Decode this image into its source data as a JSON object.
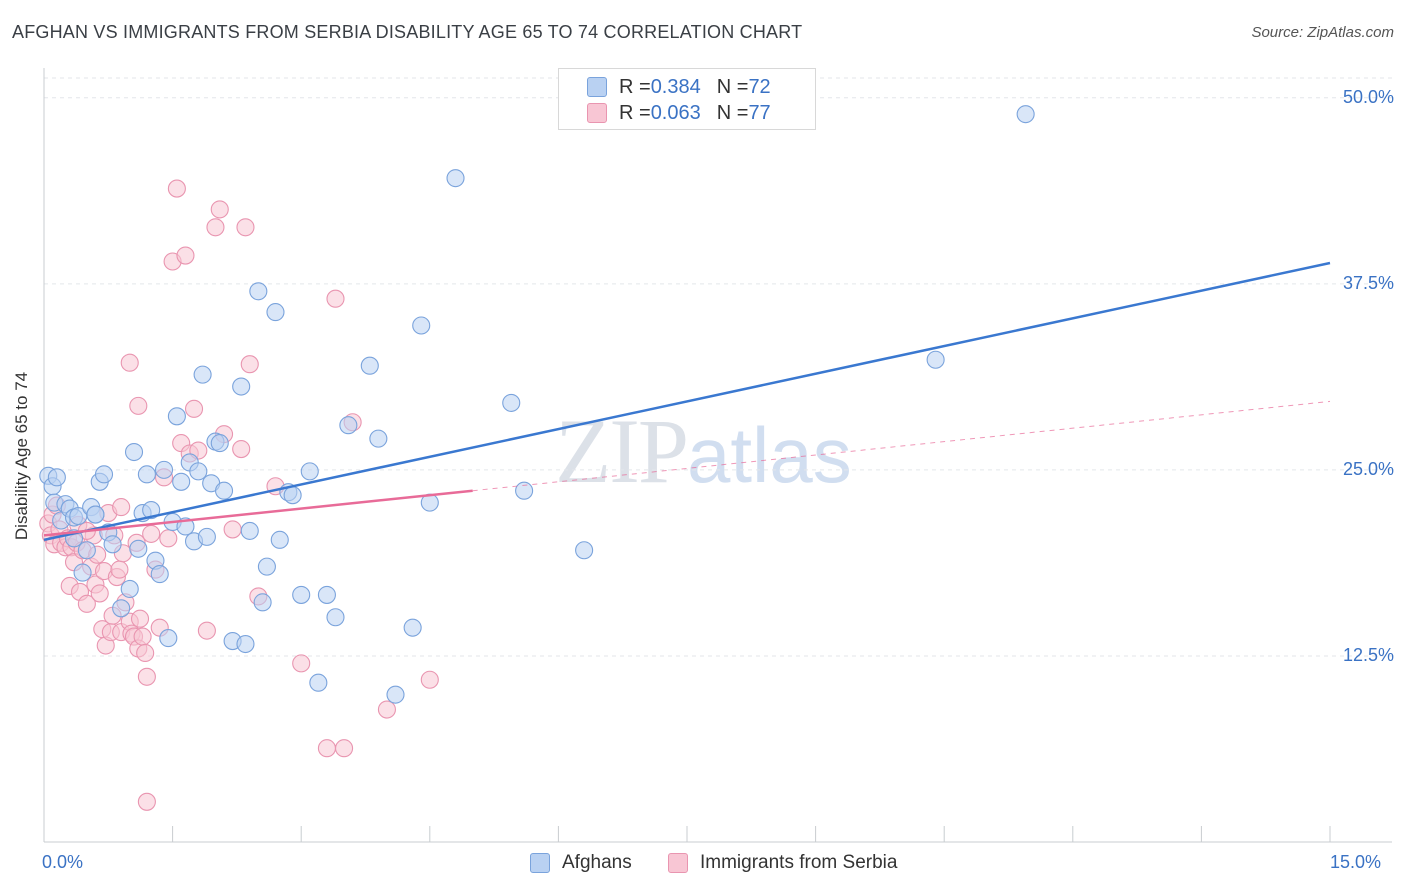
{
  "title": "AFGHAN VS IMMIGRANTS FROM SERBIA DISABILITY AGE 65 TO 74 CORRELATION CHART",
  "source_label": "Source: ZipAtlas.com",
  "watermark": {
    "zip": "ZIP",
    "atlas": "atlas"
  },
  "legend": {
    "rows": [
      {
        "r_label": "R = ",
        "r_value": "0.384",
        "n_label": "N = ",
        "n_value": "72",
        "fill": "#b9d1f2",
        "stroke": "#7aa3dc"
      },
      {
        "r_label": "R = ",
        "r_value": "0.063",
        "n_label": "N = ",
        "n_value": "77",
        "fill": "#f8c6d4",
        "stroke": "#e995b0"
      }
    ]
  },
  "bottom_legend": [
    {
      "label": "Afghans",
      "fill": "#b9d1f2",
      "stroke": "#7aa3dc"
    },
    {
      "label": "Immigrants from Serbia",
      "fill": "#f8c6d4",
      "stroke": "#e995b0"
    }
  ],
  "chart_data": {
    "type": "scatter",
    "title": "AFGHAN VS IMMIGRANTS FROM SERBIA DISABILITY AGE 65 TO 74 CORRELATION CHART",
    "xlabel": "",
    "ylabel": "Disability Age 65 to 74",
    "xlim": [
      0,
      15
    ],
    "ylim": [
      0,
      52
    ],
    "x_tick_labels": [
      "0.0%",
      "15.0%"
    ],
    "y_ticks": [
      12.5,
      25.0,
      37.5,
      50.0
    ],
    "y_tick_labels": [
      "12.5%",
      "25.0%",
      "37.5%",
      "50.0%"
    ],
    "colors": {
      "afghans": "#3a78d0",
      "serbia": "#e86b98"
    },
    "series": [
      {
        "name": "Afghans",
        "fill": "#b9d1f2",
        "stroke": "#7aa3dc",
        "trend_color": "#3a78d0",
        "trend": {
          "x0": 0.0,
          "y0": 20.3,
          "x1": 15.0,
          "y1": 38.9
        },
        "points": [
          [
            0.05,
            24.6
          ],
          [
            0.1,
            23.9
          ],
          [
            0.12,
            22.8
          ],
          [
            0.15,
            24.5
          ],
          [
            0.2,
            21.6
          ],
          [
            0.25,
            22.7
          ],
          [
            0.3,
            22.4
          ],
          [
            0.35,
            21.8
          ],
          [
            0.4,
            21.9
          ],
          [
            0.45,
            18.1
          ],
          [
            0.5,
            19.6
          ],
          [
            0.55,
            22.5
          ],
          [
            0.6,
            22.0
          ],
          [
            0.65,
            24.2
          ],
          [
            0.7,
            24.7
          ],
          [
            0.75,
            20.8
          ],
          [
            0.8,
            20.0
          ],
          [
            0.9,
            15.7
          ],
          [
            1.0,
            17.0
          ],
          [
            1.05,
            26.2
          ],
          [
            1.1,
            19.7
          ],
          [
            1.15,
            22.1
          ],
          [
            1.2,
            24.7
          ],
          [
            1.25,
            22.3
          ],
          [
            1.3,
            18.9
          ],
          [
            1.35,
            18.0
          ],
          [
            1.4,
            25.0
          ],
          [
            1.45,
            13.7
          ],
          [
            1.5,
            21.5
          ],
          [
            1.55,
            28.6
          ],
          [
            1.6,
            24.2
          ],
          [
            1.65,
            21.2
          ],
          [
            1.7,
            25.5
          ],
          [
            1.75,
            20.2
          ],
          [
            1.8,
            24.9
          ],
          [
            1.85,
            31.4
          ],
          [
            1.9,
            20.5
          ],
          [
            1.95,
            24.1
          ],
          [
            2.0,
            26.9
          ],
          [
            2.05,
            26.8
          ],
          [
            2.1,
            23.6
          ],
          [
            2.2,
            13.5
          ],
          [
            2.3,
            30.6
          ],
          [
            2.35,
            13.3
          ],
          [
            2.4,
            20.9
          ],
          [
            2.5,
            37.0
          ],
          [
            2.55,
            16.1
          ],
          [
            2.6,
            18.5
          ],
          [
            2.7,
            35.6
          ],
          [
            2.75,
            20.3
          ],
          [
            2.85,
            23.5
          ],
          [
            2.9,
            23.3
          ],
          [
            3.0,
            16.6
          ],
          [
            3.1,
            24.9
          ],
          [
            3.2,
            10.7
          ],
          [
            3.3,
            16.6
          ],
          [
            3.4,
            15.1
          ],
          [
            3.55,
            28.0
          ],
          [
            3.8,
            32.0
          ],
          [
            3.9,
            27.1
          ],
          [
            4.1,
            9.9
          ],
          [
            4.3,
            14.4
          ],
          [
            4.4,
            34.7
          ],
          [
            4.5,
            22.8
          ],
          [
            4.8,
            44.6
          ],
          [
            5.45,
            29.5
          ],
          [
            5.6,
            23.6
          ],
          [
            6.3,
            19.6
          ],
          [
            10.4,
            32.4
          ],
          [
            11.45,
            48.9
          ],
          [
            0.35,
            20.4
          ],
          [
            0.6,
            22.0
          ]
        ]
      },
      {
        "name": "Immigrants from Serbia",
        "fill": "#f8c6d4",
        "stroke": "#e995b0",
        "trend_color": "#e86b98",
        "trend": {
          "x0": 0.0,
          "y0": 20.6,
          "x1": 5.0,
          "y1": 23.6
        },
        "trend_ext": {
          "x0": 5.0,
          "y0": 23.6,
          "x1": 15.0,
          "y1": 29.6
        },
        "points": [
          [
            0.05,
            21.4
          ],
          [
            0.08,
            20.6
          ],
          [
            0.1,
            22.0
          ],
          [
            0.12,
            20.0
          ],
          [
            0.15,
            22.6
          ],
          [
            0.18,
            21.0
          ],
          [
            0.2,
            20.1
          ],
          [
            0.25,
            19.8
          ],
          [
            0.28,
            20.4
          ],
          [
            0.3,
            17.2
          ],
          [
            0.32,
            19.8
          ],
          [
            0.35,
            18.8
          ],
          [
            0.38,
            20.1
          ],
          [
            0.4,
            21.3
          ],
          [
            0.42,
            16.8
          ],
          [
            0.45,
            19.6
          ],
          [
            0.5,
            16.0
          ],
          [
            0.55,
            18.5
          ],
          [
            0.58,
            20.6
          ],
          [
            0.6,
            17.3
          ],
          [
            0.62,
            19.3
          ],
          [
            0.65,
            16.7
          ],
          [
            0.68,
            14.3
          ],
          [
            0.7,
            18.2
          ],
          [
            0.72,
            13.2
          ],
          [
            0.75,
            22.1
          ],
          [
            0.78,
            14.1
          ],
          [
            0.8,
            15.2
          ],
          [
            0.82,
            20.6
          ],
          [
            0.85,
            17.8
          ],
          [
            0.88,
            18.3
          ],
          [
            0.9,
            14.1
          ],
          [
            0.92,
            19.4
          ],
          [
            0.95,
            16.1
          ],
          [
            1.0,
            14.8
          ],
          [
            1.02,
            14.0
          ],
          [
            1.05,
            13.8
          ],
          [
            1.08,
            20.1
          ],
          [
            1.1,
            13.0
          ],
          [
            1.12,
            15.0
          ],
          [
            1.15,
            13.8
          ],
          [
            1.18,
            12.7
          ],
          [
            1.2,
            11.1
          ],
          [
            1.25,
            20.7
          ],
          [
            1.3,
            18.3
          ],
          [
            1.35,
            14.4
          ],
          [
            1.4,
            24.5
          ],
          [
            1.45,
            20.4
          ],
          [
            1.5,
            39.0
          ],
          [
            1.55,
            43.9
          ],
          [
            1.6,
            26.8
          ],
          [
            1.65,
            39.4
          ],
          [
            1.7,
            26.1
          ],
          [
            1.75,
            29.1
          ],
          [
            1.8,
            26.3
          ],
          [
            1.9,
            14.2
          ],
          [
            2.0,
            41.3
          ],
          [
            2.05,
            42.5
          ],
          [
            2.1,
            27.4
          ],
          [
            2.2,
            21.0
          ],
          [
            2.3,
            26.4
          ],
          [
            2.35,
            41.3
          ],
          [
            2.4,
            32.1
          ],
          [
            2.5,
            16.5
          ],
          [
            2.7,
            23.9
          ],
          [
            3.0,
            12.0
          ],
          [
            3.3,
            6.3
          ],
          [
            3.4,
            36.5
          ],
          [
            3.5,
            6.3
          ],
          [
            3.6,
            28.2
          ],
          [
            4.0,
            8.9
          ],
          [
            4.5,
            10.9
          ],
          [
            0.9,
            22.5
          ],
          [
            1.0,
            32.2
          ],
          [
            1.1,
            29.3
          ],
          [
            1.2,
            2.7
          ],
          [
            0.5,
            20.9
          ]
        ]
      }
    ]
  }
}
